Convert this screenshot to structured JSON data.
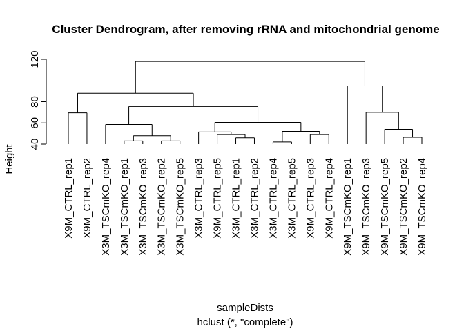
{
  "chart_data": {
    "type": "dendrogram",
    "title": "Cluster Dendrogram, after removing rRNA and mitochondrial genome",
    "ylabel": "Height",
    "xlabel": "sampleDists",
    "subtitle": "hclust (*, \"complete\")",
    "y_ticks": [
      40,
      60,
      80,
      120
    ],
    "ylim": [
      40,
      120
    ],
    "leaf_label_height": 40,
    "leaves": [
      "X9M_CTRL_rep1",
      "X9M_CTRL_rep2",
      "X3M_TSCmKO_rep4",
      "X3M_TSCmKO_rep1",
      "X3M_TSCmKO_rep3",
      "X3M_TSCmKO_rep2",
      "X3M_TSCmKO_rep5",
      "X3M_CTRL_rep3",
      "X9M_CTRL_rep5",
      "X3M_CTRL_rep1",
      "X3M_CTRL_rep2",
      "X3M_CTRL_rep4",
      "X3M_CTRL_rep5",
      "X9M_CTRL_rep3",
      "X9M_CTRL_rep4",
      "X9M_TSCmKO_rep1",
      "X9M_TSCmKO_rep3",
      "X9M_TSCmKO_rep5",
      "X9M_TSCmKO_rep2",
      "X9M_TSCmKO_rep4"
    ],
    "merges": [
      {
        "id": "a",
        "left": 0,
        "right": 1,
        "height": 69.5
      },
      {
        "id": "b",
        "left": 3,
        "right": 4,
        "height": 43
      },
      {
        "id": "c",
        "left": 5,
        "right": 6,
        "height": 43
      },
      {
        "id": "d",
        "left": "b",
        "right": "c",
        "height": 48
      },
      {
        "id": "e",
        "left": 2,
        "right": "d",
        "height": 58.5
      },
      {
        "id": "f",
        "left": 9,
        "right": 10,
        "height": 46
      },
      {
        "id": "g",
        "left": 8,
        "right": "f",
        "height": 49
      },
      {
        "id": "h",
        "left": 7,
        "right": "g",
        "height": 51.5
      },
      {
        "id": "i",
        "left": 11,
        "right": 12,
        "height": 42
      },
      {
        "id": "j",
        "left": 13,
        "right": 14,
        "height": 49
      },
      {
        "id": "k",
        "left": "i",
        "right": "j",
        "height": 52
      },
      {
        "id": "l",
        "left": "h",
        "right": "k",
        "height": 60.5
      },
      {
        "id": "m",
        "left": "e",
        "right": "l",
        "height": 75.5
      },
      {
        "id": "n",
        "left": "a",
        "right": "m",
        "height": 88
      },
      {
        "id": "o",
        "left": 18,
        "right": 19,
        "height": 46.5
      },
      {
        "id": "p",
        "left": 17,
        "right": "o",
        "height": 54
      },
      {
        "id": "q",
        "left": 16,
        "right": "p",
        "height": 70
      },
      {
        "id": "r",
        "left": 15,
        "right": "q",
        "height": 95
      },
      {
        "id": "s",
        "left": "n",
        "right": "r",
        "height": 118
      }
    ]
  }
}
